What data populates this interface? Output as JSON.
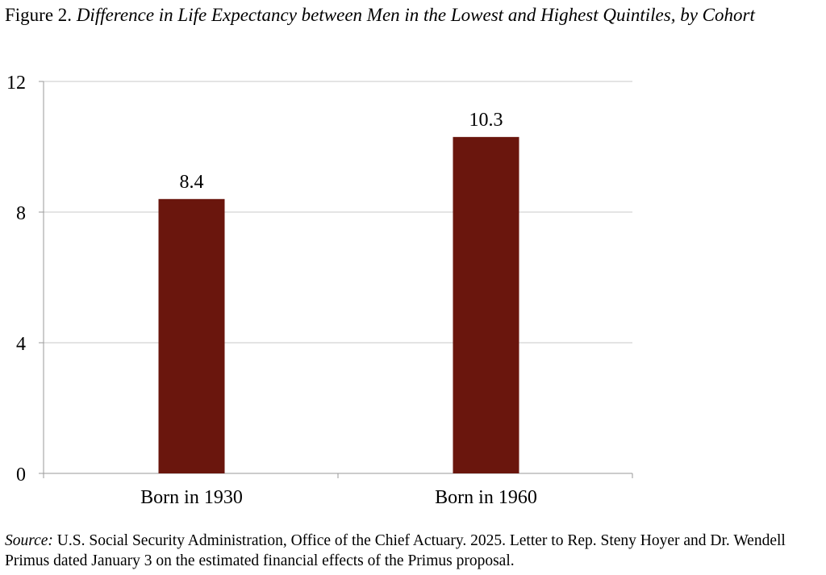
{
  "figure": {
    "label": "Figure 2.",
    "title_italic": "Difference in Life Expectancy between Men in the Lowest and Highest Quintiles, by Cohort"
  },
  "chart_data": {
    "type": "bar",
    "title": "Difference in Life Expectancy between Men in the Lowest and Highest Quintiles, by Cohort",
    "categories": [
      "Born in 1930",
      "Born in 1960"
    ],
    "values": [
      8.4,
      10.3
    ],
    "data_labels": [
      "8.4",
      "10.3"
    ],
    "ylim": [
      0,
      12
    ],
    "yticks": [
      0,
      4,
      8,
      12
    ],
    "ytick_labels": [
      "0",
      "4",
      "8",
      "12"
    ],
    "xlabel": "",
    "ylabel": "",
    "grid": true,
    "bar_color": "#6a160d",
    "grid_color": "#c8c8c8"
  },
  "source": {
    "label": "Source:",
    "text": " U.S. Social Security Administration, Office of the Chief Actuary. 2025. Letter to Rep. Steny Hoyer and Dr. Wendell Primus dated January 3 on the estimated financial effects of the Primus proposal."
  }
}
